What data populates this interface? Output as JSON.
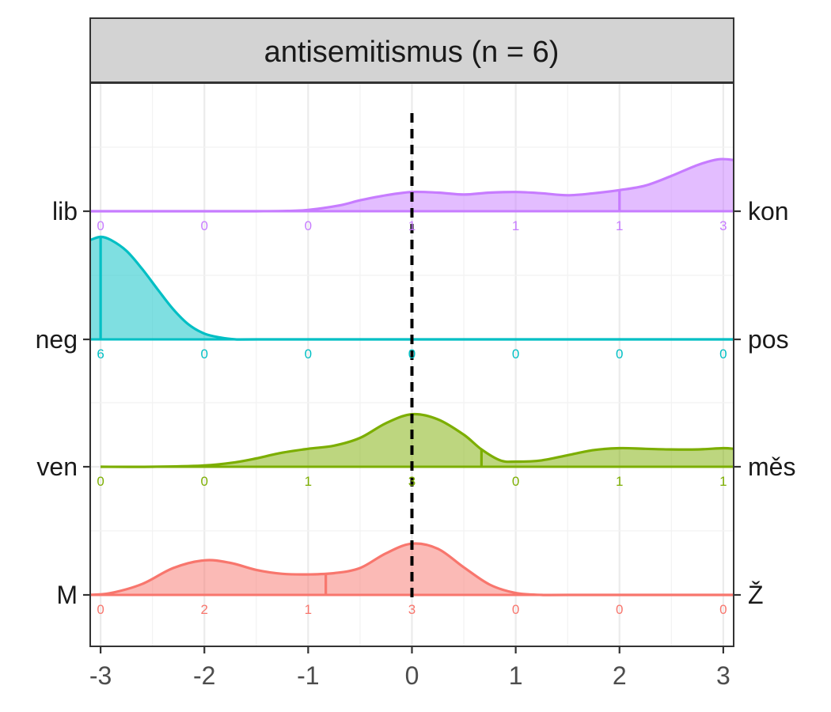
{
  "chart_data": {
    "type": "ridgeline",
    "title": "antisemitismus (n = 6)",
    "xlabel": "",
    "ylabel": "",
    "xlim": [
      -3.1,
      3.1
    ],
    "x_ticks": [
      -3,
      -2,
      -1,
      0,
      1,
      2,
      3
    ],
    "x_tick_labels": [
      "-3",
      "-2",
      "-1",
      "0",
      "1",
      "2",
      "3"
    ],
    "reference_line_x": 0,
    "grid": true,
    "count_positions": [
      -3,
      -2,
      -1,
      0,
      1,
      2,
      3
    ],
    "rows": [
      {
        "left_label": "lib",
        "right_label": "kon",
        "color": "#C77CFF",
        "counts": [
          "0",
          "0",
          "0",
          "1",
          "1",
          "1",
          "3"
        ],
        "mean": 2.0,
        "density": [
          [
            -3.1,
            0.0
          ],
          [
            -2.5,
            0.0
          ],
          [
            -2.0,
            0.0
          ],
          [
            -1.5,
            0.0
          ],
          [
            -1.2,
            0.005
          ],
          [
            -1.0,
            0.02
          ],
          [
            -0.7,
            0.09
          ],
          [
            -0.5,
            0.17
          ],
          [
            -0.25,
            0.25
          ],
          [
            0.0,
            0.3
          ],
          [
            0.25,
            0.29
          ],
          [
            0.5,
            0.26
          ],
          [
            0.75,
            0.29
          ],
          [
            1.0,
            0.3
          ],
          [
            1.25,
            0.28
          ],
          [
            1.5,
            0.25
          ],
          [
            1.75,
            0.28
          ],
          [
            2.0,
            0.33
          ],
          [
            2.25,
            0.4
          ],
          [
            2.5,
            0.55
          ],
          [
            2.75,
            0.72
          ],
          [
            2.95,
            0.81
          ],
          [
            3.1,
            0.8
          ]
        ]
      },
      {
        "left_label": "neg",
        "right_label": "pos",
        "color": "#00BFC4",
        "counts": [
          "6",
          "0",
          "0",
          "0",
          "0",
          "0",
          "0"
        ],
        "mean": -3.0,
        "density": [
          [
            -3.1,
            1.55
          ],
          [
            -3.0,
            1.6
          ],
          [
            -2.9,
            1.55
          ],
          [
            -2.75,
            1.38
          ],
          [
            -2.6,
            1.1
          ],
          [
            -2.45,
            0.78
          ],
          [
            -2.3,
            0.47
          ],
          [
            -2.15,
            0.23
          ],
          [
            -2.0,
            0.09
          ],
          [
            -1.85,
            0.03
          ],
          [
            -1.7,
            0.0
          ],
          [
            -1.5,
            0.0
          ],
          [
            0.0,
            0.0
          ],
          [
            3.1,
            0.0
          ]
        ]
      },
      {
        "left_label": "ven",
        "right_label": "měs",
        "color": "#7CAE00",
        "counts": [
          "0",
          "0",
          "1",
          "3",
          "0",
          "1",
          "1"
        ],
        "mean": 0.67,
        "density": [
          [
            -3.0,
            0.0
          ],
          [
            -2.5,
            0.0
          ],
          [
            -2.0,
            0.02
          ],
          [
            -1.7,
            0.07
          ],
          [
            -1.5,
            0.13
          ],
          [
            -1.25,
            0.22
          ],
          [
            -1.0,
            0.28
          ],
          [
            -0.75,
            0.33
          ],
          [
            -0.5,
            0.45
          ],
          [
            -0.25,
            0.68
          ],
          [
            0.0,
            0.82
          ],
          [
            0.25,
            0.74
          ],
          [
            0.5,
            0.5
          ],
          [
            0.67,
            0.27
          ],
          [
            0.85,
            0.1
          ],
          [
            1.0,
            0.08
          ],
          [
            1.25,
            0.1
          ],
          [
            1.5,
            0.18
          ],
          [
            1.75,
            0.26
          ],
          [
            2.0,
            0.29
          ],
          [
            2.25,
            0.28
          ],
          [
            2.5,
            0.27
          ],
          [
            2.75,
            0.27
          ],
          [
            3.0,
            0.29
          ],
          [
            3.1,
            0.28
          ]
        ]
      },
      {
        "left_label": "M",
        "right_label": "Ž",
        "color": "#F8766D",
        "counts": [
          "0",
          "2",
          "1",
          "3",
          "0",
          "0",
          "0"
        ],
        "mean": -0.83,
        "density": [
          [
            -3.1,
            0.0
          ],
          [
            -2.9,
            0.03
          ],
          [
            -2.6,
            0.17
          ],
          [
            -2.3,
            0.42
          ],
          [
            -2.0,
            0.54
          ],
          [
            -1.75,
            0.5
          ],
          [
            -1.5,
            0.39
          ],
          [
            -1.25,
            0.33
          ],
          [
            -1.0,
            0.32
          ],
          [
            -0.75,
            0.34
          ],
          [
            -0.5,
            0.42
          ],
          [
            -0.25,
            0.65
          ],
          [
            0.0,
            0.8
          ],
          [
            0.25,
            0.72
          ],
          [
            0.5,
            0.43
          ],
          [
            0.75,
            0.16
          ],
          [
            1.0,
            0.03
          ],
          [
            1.25,
            0.0
          ],
          [
            1.5,
            0.0
          ],
          [
            3.1,
            0.0
          ]
        ]
      }
    ]
  }
}
